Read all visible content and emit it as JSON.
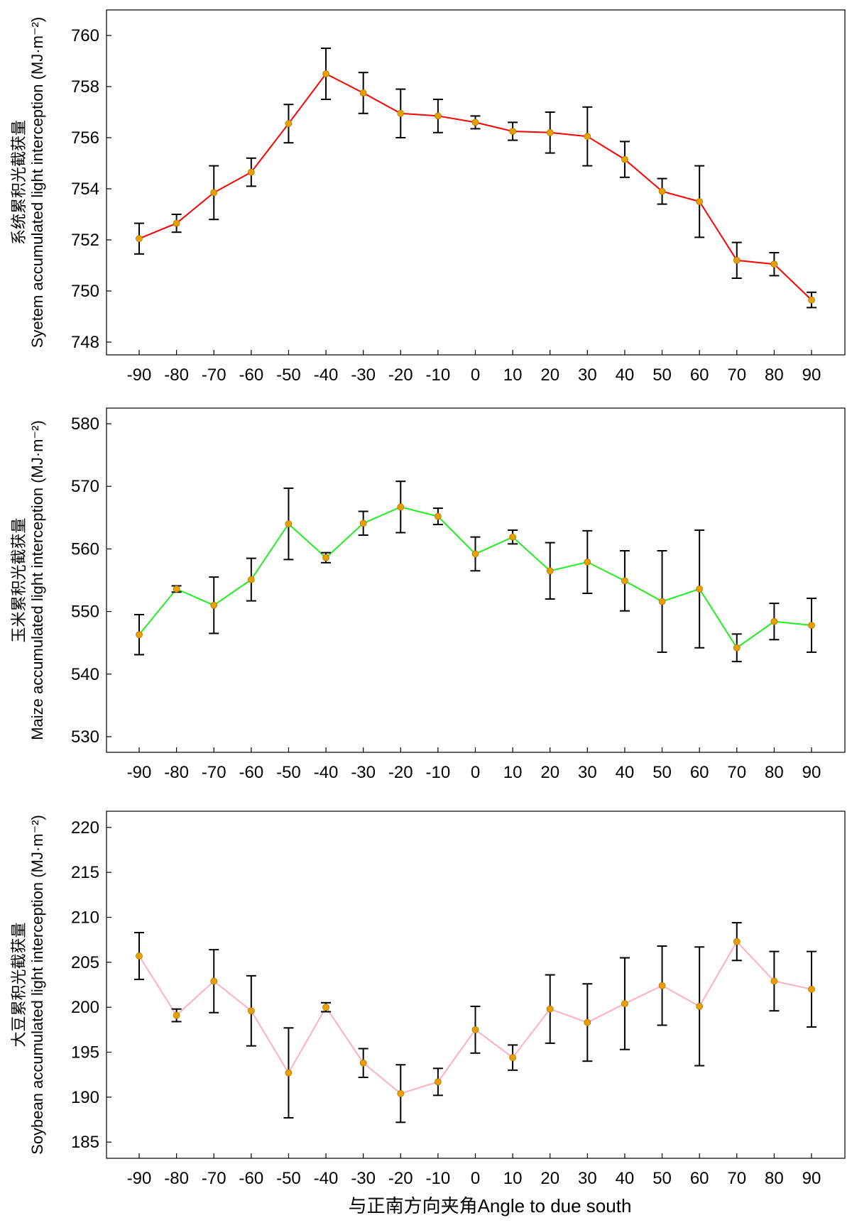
{
  "chart_data": [
    {
      "type": "line",
      "ylabel_cn": "系统累积光截获量",
      "ylabel_en": "Syetem accumulated light interception (MJ·m⁻²)",
      "categories": [
        "-90",
        "-80",
        "-70",
        "-60",
        "-50",
        "-40",
        "-30",
        "-20",
        "-10",
        "0",
        "10",
        "20",
        "30",
        "40",
        "50",
        "60",
        "70",
        "80",
        "90"
      ],
      "y_ticks": [
        "748",
        "750",
        "752",
        "754",
        "756",
        "758",
        "760"
      ],
      "ylim": [
        747.5,
        761
      ],
      "line_color": "#ff0000",
      "marker_color": "#e8a000",
      "series": [
        {
          "values": [
            752.05,
            752.65,
            753.85,
            754.65,
            756.55,
            758.5,
            757.75,
            756.95,
            756.85,
            756.6,
            756.25,
            756.2,
            756.05,
            755.15,
            753.9,
            753.5,
            751.2,
            751.05,
            749.65
          ],
          "errors": [
            0.6,
            0.35,
            1.05,
            0.55,
            0.75,
            1.0,
            0.8,
            0.95,
            0.65,
            0.25,
            0.35,
            0.8,
            1.15,
            0.7,
            0.5,
            1.4,
            0.7,
            0.45,
            0.3
          ]
        }
      ]
    },
    {
      "type": "line",
      "ylabel_cn": "玉米累积光截获量",
      "ylabel_en": "Maize accumulated light interception (MJ·m⁻²)",
      "categories": [
        "-90",
        "-80",
        "-70",
        "-60",
        "-50",
        "-40",
        "-30",
        "-20",
        "-10",
        "0",
        "10",
        "20",
        "30",
        "40",
        "50",
        "60",
        "70",
        "80",
        "90"
      ],
      "y_ticks": [
        "530",
        "540",
        "550",
        "560",
        "570",
        "580"
      ],
      "ylim": [
        527.5,
        582.5
      ],
      "line_color": "#22ee22",
      "marker_color": "#e8a000",
      "series": [
        {
          "values": [
            546.3,
            553.6,
            551.0,
            555.1,
            564.0,
            558.6,
            564.1,
            566.7,
            565.2,
            559.2,
            561.9,
            556.5,
            557.9,
            554.9,
            551.6,
            553.6,
            544.2,
            548.4,
            547.8
          ],
          "errors": [
            3.2,
            0.5,
            4.5,
            3.4,
            5.7,
            0.8,
            1.9,
            4.1,
            1.3,
            2.7,
            1.1,
            4.5,
            5.0,
            4.8,
            8.1,
            9.4,
            2.2,
            2.9,
            4.3
          ]
        }
      ]
    },
    {
      "type": "line",
      "ylabel_cn": "大豆累积光截获量",
      "ylabel_en": "Soybean accumulated light interception (MJ·m⁻²)",
      "categories": [
        "-90",
        "-80",
        "-70",
        "-60",
        "-50",
        "-40",
        "-30",
        "-20",
        "-10",
        "0",
        "10",
        "20",
        "30",
        "40",
        "50",
        "60",
        "70",
        "80",
        "90"
      ],
      "y_ticks": [
        "185",
        "190",
        "195",
        "200",
        "205",
        "210",
        "215",
        "220"
      ],
      "ylim": [
        183.2,
        221.8
      ],
      "line_color": "#ffb0c0",
      "marker_color": "#e8a000",
      "series": [
        {
          "values": [
            205.7,
            199.1,
            202.9,
            199.6,
            192.7,
            200.0,
            193.8,
            190.4,
            191.7,
            197.5,
            194.4,
            199.8,
            198.3,
            200.4,
            202.4,
            200.1,
            207.3,
            202.9,
            202.0
          ],
          "errors": [
            2.6,
            0.7,
            3.5,
            3.9,
            5.0,
            0.5,
            1.6,
            3.2,
            1.5,
            2.6,
            1.4,
            3.8,
            4.3,
            5.1,
            4.4,
            6.6,
            2.1,
            3.3,
            4.2
          ]
        }
      ]
    }
  ],
  "xlabel": "与正南方向夹角Angle to due south"
}
